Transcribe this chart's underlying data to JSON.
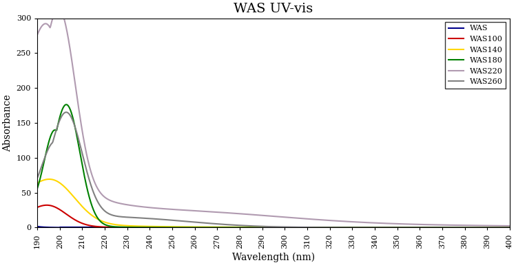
{
  "title": "WAS UV-vis",
  "xlabel": "Wavelength (nm)",
  "ylabel": "Absorbance",
  "xlim": [
    190,
    400
  ],
  "ylim": [
    0,
    300
  ],
  "yticks": [
    0,
    50,
    100,
    150,
    200,
    250,
    300
  ],
  "xticks": [
    190,
    200,
    210,
    220,
    230,
    240,
    250,
    260,
    270,
    280,
    290,
    300,
    310,
    320,
    330,
    340,
    350,
    360,
    370,
    380,
    390,
    400
  ],
  "series": [
    {
      "label": "WAS",
      "color": "#00008B"
    },
    {
      "label": "WAS100",
      "color": "#CC0000"
    },
    {
      "label": "WAS140",
      "color": "#FFD700"
    },
    {
      "label": "WAS180",
      "color": "#008000"
    },
    {
      "label": "WAS220",
      "color": "#B09AB0"
    },
    {
      "label": "WAS260",
      "color": "#808080"
    }
  ],
  "background_color": "#ffffff",
  "title_fontsize": 14,
  "axis_fontsize": 10,
  "tick_fontsize": 8,
  "legend_fontsize": 8
}
